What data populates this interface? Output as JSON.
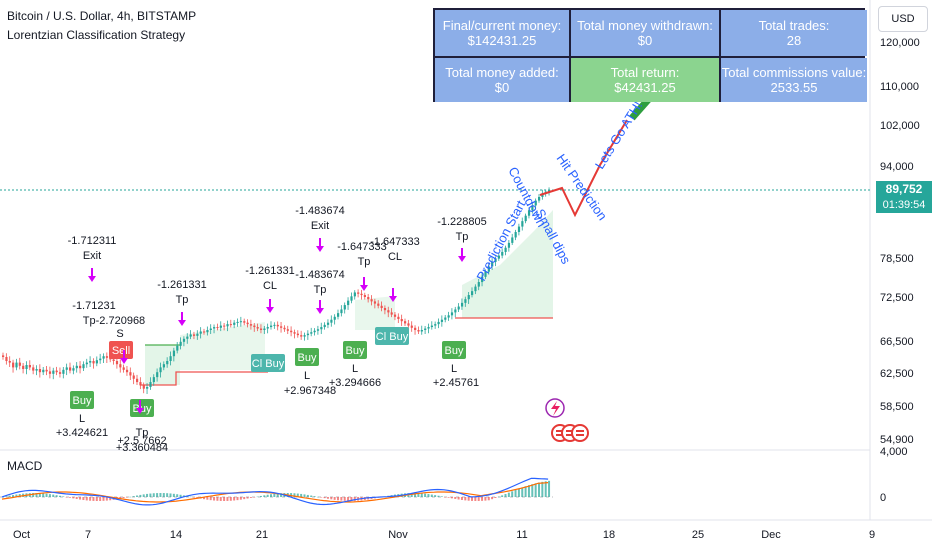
{
  "header": {
    "title": "Bitcoin / U.S. Dollar, 4h, BITSTAMP",
    "strategy": "Lorentzian Classification Strategy"
  },
  "stats_table": {
    "cells": [
      {
        "label": "Final/current money:",
        "value": "$142431.25",
        "color": "#8caee8"
      },
      {
        "label": "Total money withdrawn:",
        "value": "$0",
        "color": "#8caee8"
      },
      {
        "label": "Total trades:",
        "value": "28",
        "color": "#8caee8"
      },
      {
        "label": "Total money added:",
        "value": "$0",
        "color": "#8caee8"
      },
      {
        "label": "Total return:",
        "value": "$42431.25",
        "color": "#8bd48f"
      },
      {
        "label": "Total commissions value:",
        "value": "2533.55",
        "color": "#8caee8"
      }
    ]
  },
  "currency_button": "USD",
  "current_price": {
    "value": "89,752",
    "countdown": "01:39:54",
    "color": "#26a69a"
  },
  "annotations": [
    "Countdown",
    "Prediction Start",
    "Small dips",
    "Hit Prediction",
    "Lets Go ATH!"
  ],
  "chart_data": {
    "type": "candlestick",
    "price_axis": {
      "ticks": [
        "120,000",
        "110,000",
        "102,000",
        "94,000",
        "78,500",
        "72,500",
        "66,500",
        "62,500",
        "58,500",
        "54,900"
      ]
    },
    "time_axis": {
      "ticks": [
        "Oct",
        "7",
        "14",
        "21",
        "Nov",
        "11",
        "18",
        "25",
        "Dec",
        "9"
      ]
    },
    "signals": [
      {
        "text": "Buy",
        "type": "buy",
        "x": 82,
        "y": 400,
        "value": "L"
      },
      {
        "text": "Buy",
        "type": "buy",
        "x": 142,
        "y": 408,
        "value": ""
      },
      {
        "text": "Buy",
        "type": "buy",
        "x": 307,
        "y": 357,
        "value": "L"
      },
      {
        "text": "Buy",
        "type": "buy",
        "x": 355,
        "y": 350,
        "value": "L"
      },
      {
        "text": "Buy",
        "type": "buy",
        "x": 454,
        "y": 350,
        "value": "L"
      },
      {
        "text": "Sell",
        "type": "sell",
        "x": 121,
        "y": 350,
        "value": ""
      },
      {
        "text": "Cl Buy",
        "type": "close",
        "x": 268,
        "y": 363,
        "value": ""
      },
      {
        "text": "Cl Buy",
        "type": "close",
        "x": 392,
        "y": 336,
        "value": ""
      }
    ],
    "trade_labels": [
      "-1.712311",
      "Exit",
      "-1.71231",
      "Tp-2.720968",
      "S",
      "+3.424621",
      "Tp",
      "+2.5 7662",
      "+3.360484",
      "-1.261331",
      "Tp",
      "-1.261331",
      "CL",
      "-1.483674",
      "Exit",
      "-1.483674",
      "Tp",
      "+2.967348",
      "-1.647333",
      "Tp",
      "-1.647333",
      "CL",
      "+3.294666",
      "-1.228805",
      "Tp",
      "+2.45761"
    ],
    "indicator": {
      "name": "MACD",
      "ticks": [
        "4,000",
        "0"
      ]
    },
    "closes": [
      64500,
      64000,
      63800,
      63200,
      63800,
      63400,
      63000,
      63500,
      63200,
      62800,
      63000,
      62600,
      62900,
      62700,
      62400,
      62800,
      62600,
      62400,
      62900,
      63200,
      62800,
      63100,
      63400,
      63100,
      63600,
      63800,
      64000,
      63700,
      64100,
      64300,
      64600,
      64400,
      64200,
      64000,
      63600,
      63200,
      62900,
      62600,
      62200,
      61800,
      61400,
      61000,
      60600,
      60800,
      61400,
      62000,
      62600,
      63200,
      63600,
      64000,
      64600,
      65300,
      65900,
      66400,
      66800,
      67100,
      67400,
      67200,
      67500,
      67800,
      67700,
      68000,
      68200,
      68400,
      68300,
      68600,
      68500,
      68800,
      68700,
      69000,
      69100,
      69200,
      69000,
      68800,
      68600,
      68400,
      68200,
      68000,
      68200,
      68400,
      68600,
      68700,
      68500,
      68300,
      68100,
      67900,
      67700,
      67500,
      67300,
      67100,
      67300,
      67500,
      67700,
      67900,
      68100,
      68400,
      68700,
      69000,
      69400,
      69800,
      70300,
      70800,
      71400,
      72000,
      72600,
      73200,
      73000,
      72800,
      72500,
      72200,
      71900,
      71600,
      71300,
      71000,
      70700,
      70400,
      70100,
      69800,
      69500,
      69200,
      68900,
      68600,
      68300,
      68000,
      67800,
      68000,
      68200,
      68400,
      68600,
      68800,
      69100,
      69400,
      69700,
      70000,
      70400,
      70800,
      71200,
      71700,
      72200,
      72800,
      73400,
      74100,
      74800,
      75600,
      76400,
      77200,
      77900,
      78400,
      78900,
      79500,
      80200,
      81000,
      81900,
      82800,
      83700,
      84600,
      85500,
      86400,
      87200,
      88000,
      88600,
      89200,
      89500,
      89752
    ]
  }
}
